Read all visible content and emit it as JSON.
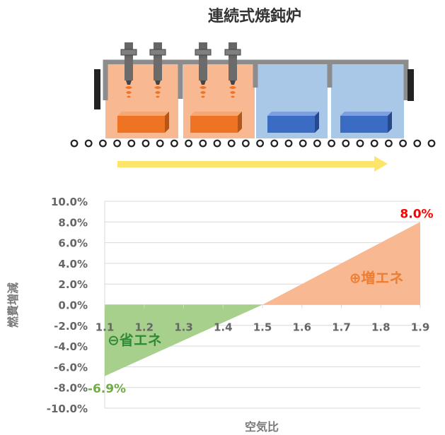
{
  "title": "連続式焼鈍炉",
  "colors": {
    "heat_zone": "#f8b892",
    "cool_zone": "#a9c8e8",
    "frame": "#8c8c8c",
    "hot_block": "#ee7423",
    "cool_block": "#3a6cc4",
    "arrow": "#fde46a",
    "saving_area": "#a8d08d",
    "increase_area": "#f8b892",
    "saving_text": "#2e8b3a",
    "increase_text": "#ed7d31",
    "max_label": "#ff0000",
    "min_label": "#70ad47"
  },
  "furnace": {
    "burner_icons": [
      "burner-icon",
      "burner-icon",
      "burner-icon",
      "burner-icon"
    ],
    "zones": [
      "heating",
      "heating",
      "cooling",
      "cooling"
    ],
    "roller_count": 26
  },
  "chart_data": {
    "type": "area",
    "xlabel": "空気比",
    "ylabel": "燃費増減",
    "x_ticks": [
      "1.1",
      "1.2",
      "1.3",
      "1.4",
      "1.5",
      "1.6",
      "1.7",
      "1.8",
      "1.9"
    ],
    "y_ticks": [
      "10.0%",
      "8.0%",
      "6.0%",
      "4.0%",
      "2.0%",
      "0.0%",
      "-2.0%",
      "-4.0%",
      "-6.0%",
      "-8.0%",
      "-10.0%"
    ],
    "xlim": [
      1.1,
      1.9
    ],
    "ylim": [
      -10,
      10
    ],
    "series": [
      {
        "x": [
          1.1,
          1.5,
          1.9
        ],
        "y": [
          -6.9,
          0,
          8.0
        ]
      }
    ],
    "annotations": {
      "saving": "⊖省エネ",
      "increase": "⊕増エネ",
      "max_label": "8.0%",
      "min_label": "-6.9%"
    }
  }
}
